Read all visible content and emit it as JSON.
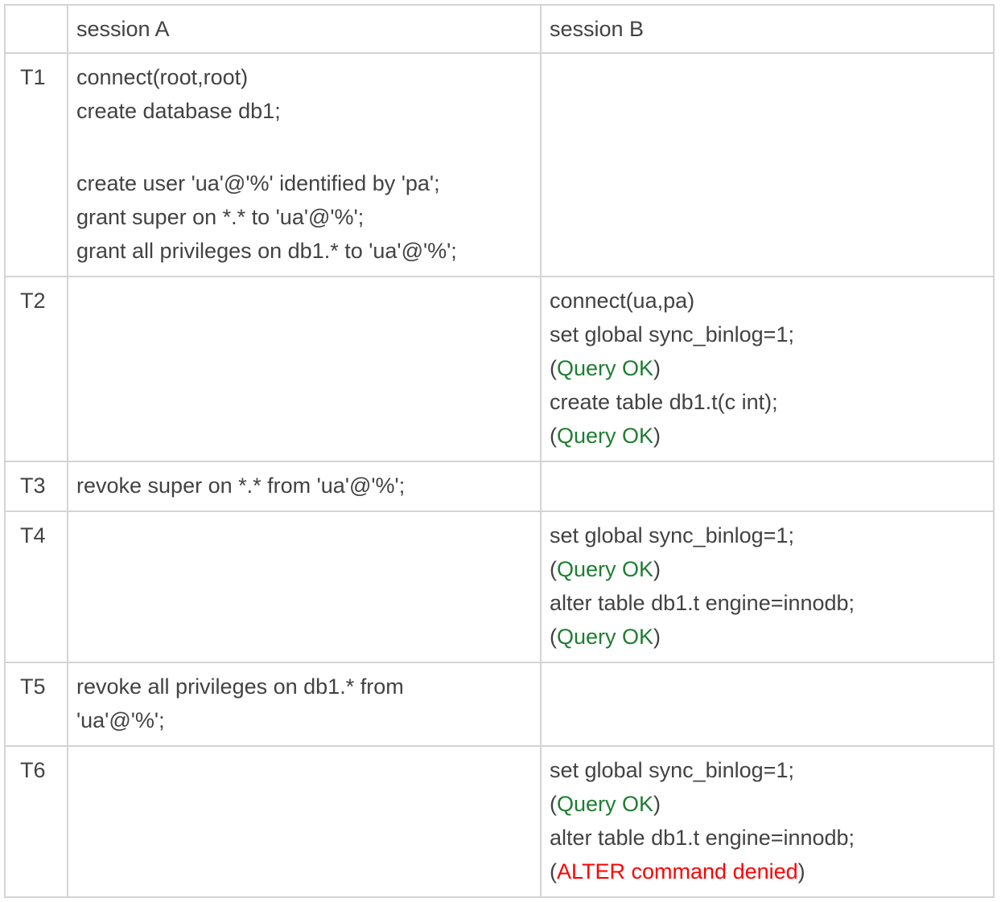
{
  "colors": {
    "text": "#424242",
    "ok_green": "#1e7d32",
    "error_red": "#ff0000",
    "border": "#d4d4d4",
    "background": "#ffffff"
  },
  "table": {
    "columns": [
      "",
      "session A",
      "session B"
    ],
    "segment_styles": {
      "t": "default-text",
      "g": "ok-green",
      "r": "error-red"
    },
    "rows": [
      {
        "time": "T1",
        "session_a": [
          [
            [
              "connect(root,root)",
              "t"
            ]
          ],
          [
            [
              "create database db1;",
              "t"
            ]
          ],
          [],
          [
            [
              "create user 'ua'@'%' identified by 'pa';",
              "t"
            ]
          ],
          [
            [
              "grant super on *.* to 'ua'@'%';",
              "t"
            ]
          ],
          [
            [
              "grant all privileges on db1.* to 'ua'@'%';",
              "t"
            ]
          ]
        ],
        "session_b": []
      },
      {
        "time": "T2",
        "session_a": [],
        "session_b": [
          [
            [
              "connect(ua,pa)",
              "t"
            ]
          ],
          [
            [
              "set global sync_binlog=1;",
              "t"
            ]
          ],
          [
            [
              "(",
              "t"
            ],
            [
              "Query OK",
              "g"
            ],
            [
              ")",
              "t"
            ]
          ],
          [
            [
              "create table db1.t(c int);",
              "t"
            ]
          ],
          [
            [
              "(",
              "t"
            ],
            [
              "Query OK",
              "g"
            ],
            [
              ")",
              "t"
            ]
          ]
        ]
      },
      {
        "time": "T3",
        "session_a": [
          [
            [
              "revoke super on *.* from 'ua'@'%';",
              "t"
            ]
          ]
        ],
        "session_b": []
      },
      {
        "time": "T4",
        "session_a": [],
        "session_b": [
          [
            [
              "set global sync_binlog=1;",
              "t"
            ]
          ],
          [
            [
              "(",
              "t"
            ],
            [
              "Query OK",
              "g"
            ],
            [
              ")",
              "t"
            ]
          ],
          [
            [
              "alter table db1.t engine=innodb;",
              "t"
            ]
          ],
          [
            [
              "(",
              "t"
            ],
            [
              "Query OK",
              "g"
            ],
            [
              ")",
              "t"
            ]
          ]
        ]
      },
      {
        "time": "T5",
        "session_a": [
          [
            [
              "revoke all privileges on db1.* from",
              "t"
            ]
          ],
          [
            [
              "'ua'@'%';",
              "t"
            ]
          ]
        ],
        "session_b": []
      },
      {
        "time": "T6",
        "session_a": [],
        "session_b": [
          [
            [
              "set global sync_binlog=1;",
              "t"
            ]
          ],
          [
            [
              "(",
              "t"
            ],
            [
              "Query OK",
              "g"
            ],
            [
              ")",
              "t"
            ]
          ],
          [
            [
              "alter table db1.t engine=innodb;",
              "t"
            ]
          ],
          [
            [
              "(",
              "t"
            ],
            [
              "ALTER command denied",
              "r"
            ],
            [
              ")",
              "t"
            ]
          ]
        ]
      }
    ]
  }
}
